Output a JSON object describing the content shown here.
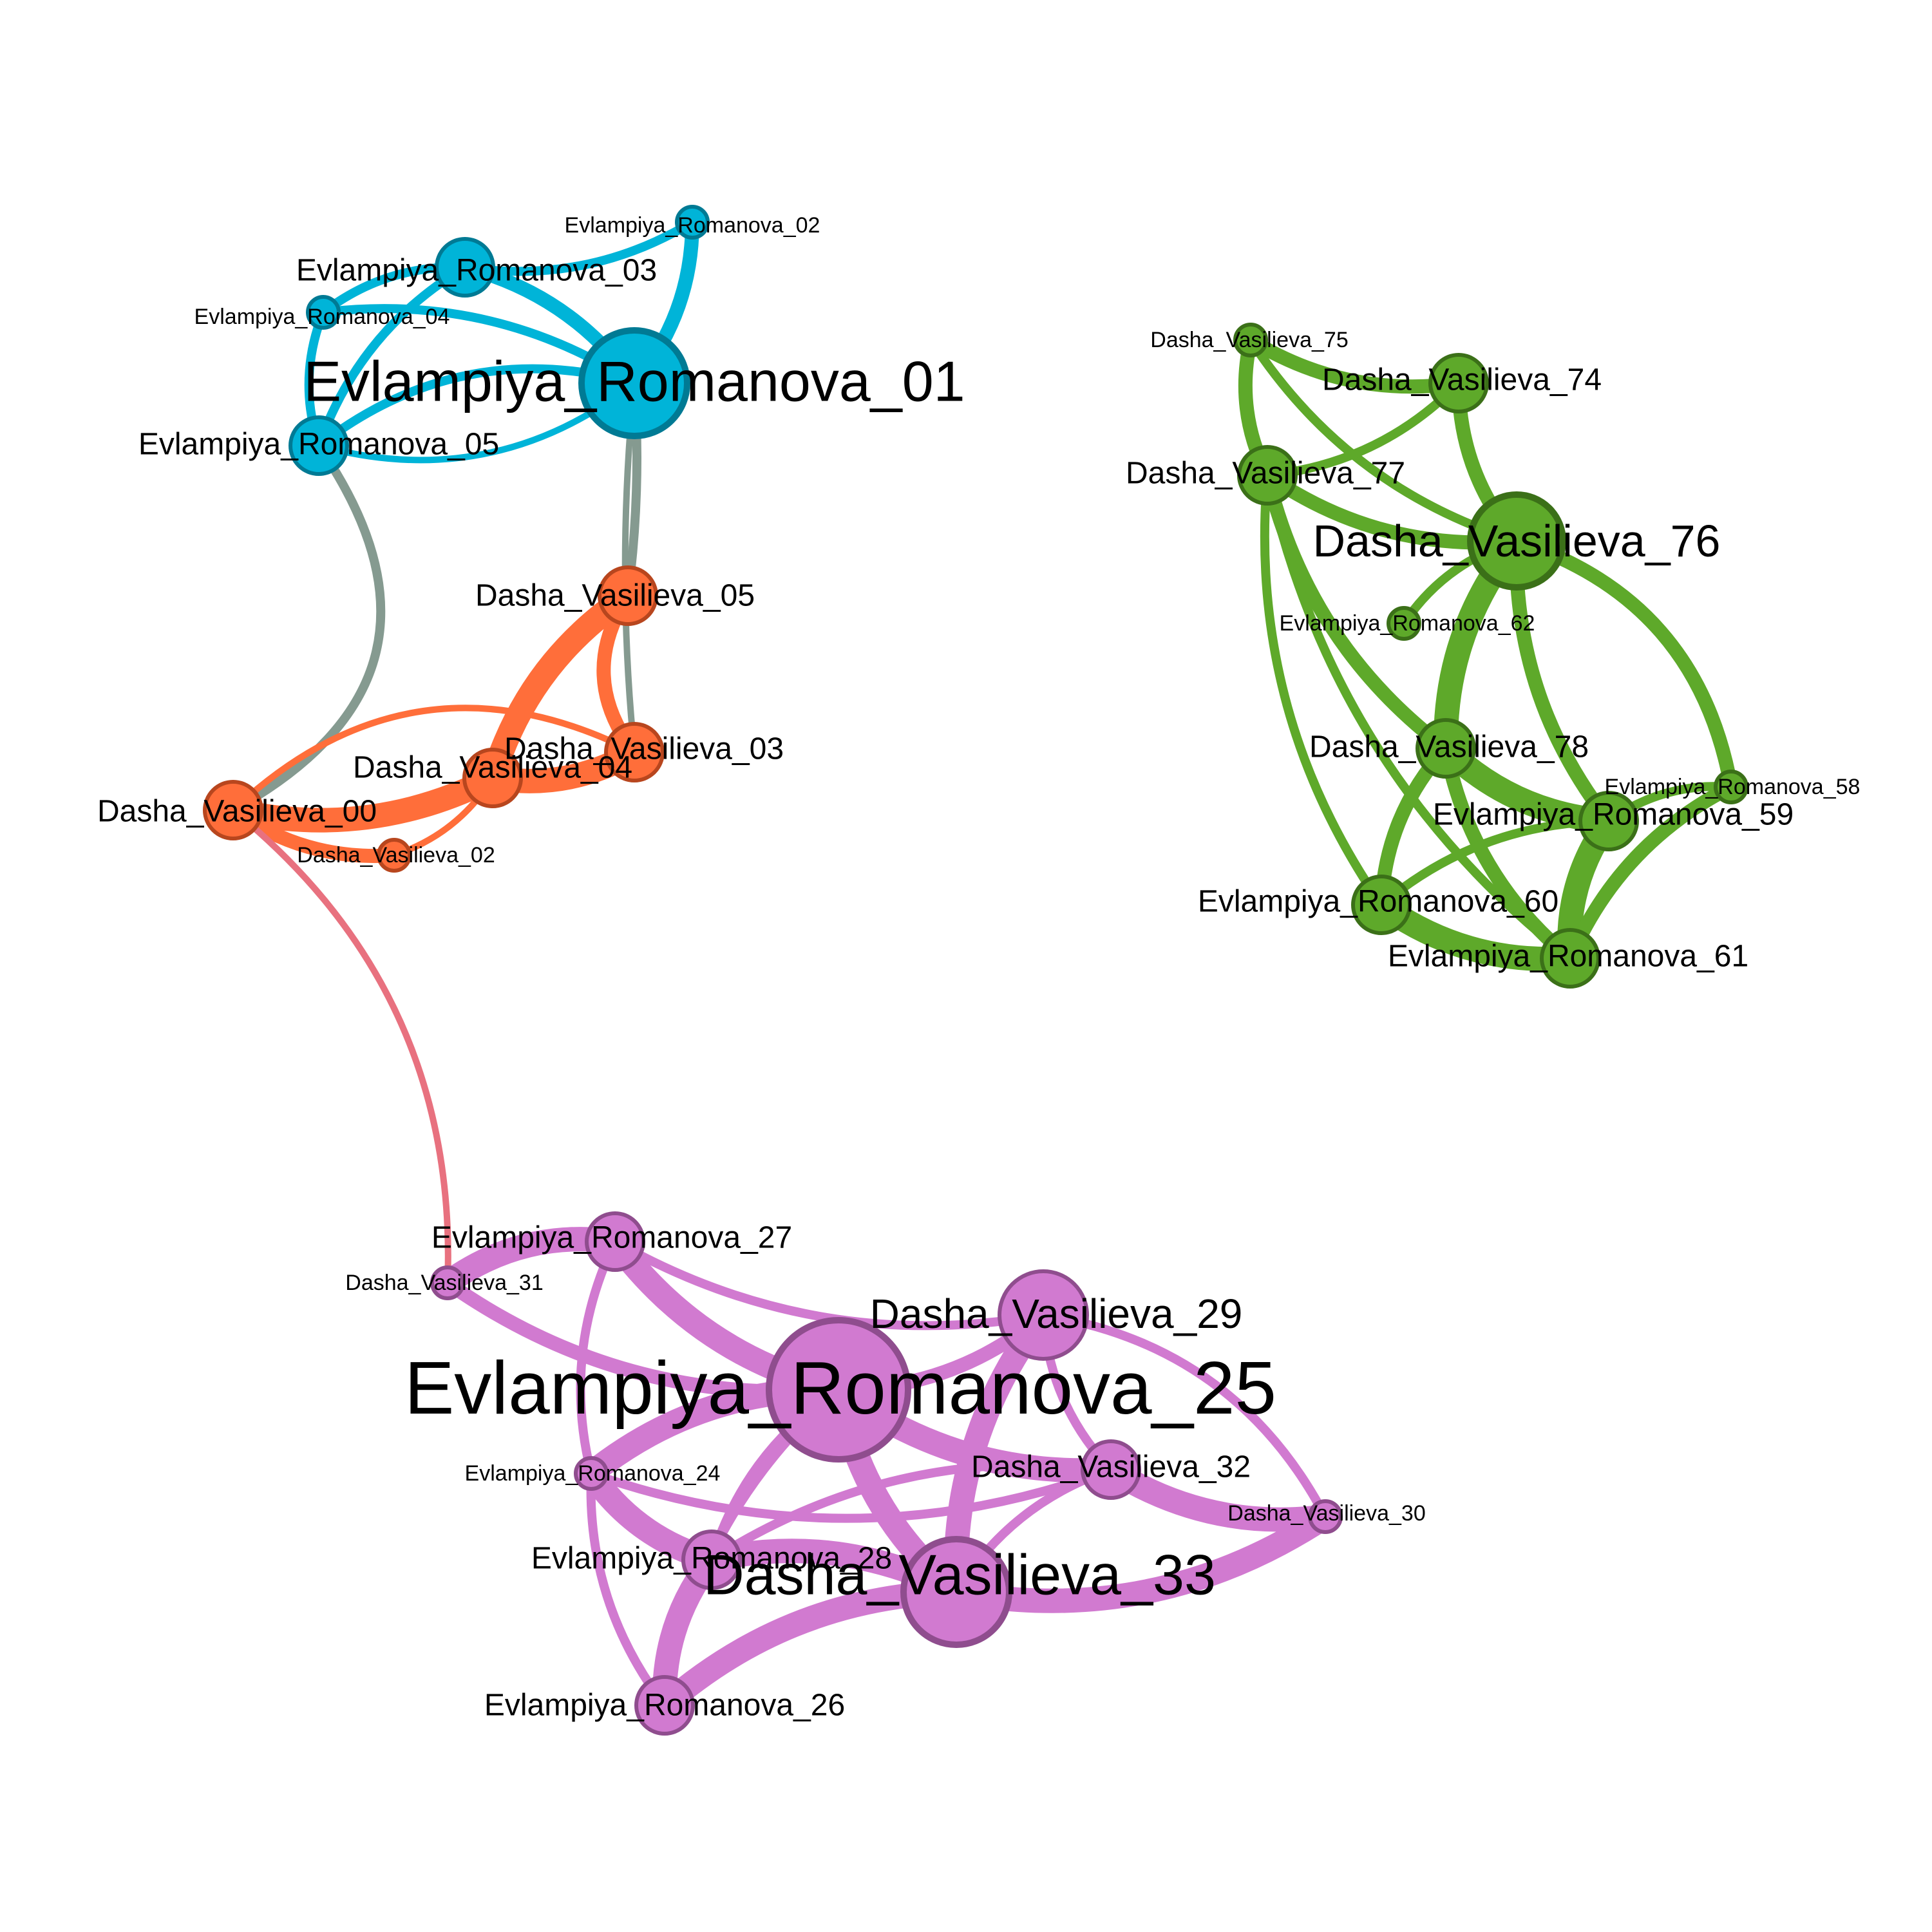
{
  "communities": {
    "blue": {
      "fill": "#00b4d8",
      "stroke": "#007a94"
    },
    "orange": {
      "fill": "#ff6e3a",
      "stroke": "#b8461e"
    },
    "green": {
      "fill": "#5ea92a",
      "stroke": "#3b7018"
    },
    "purple": {
      "fill": "#d17ad0",
      "stroke": "#8f4d8e"
    }
  },
  "nodes": [
    {
      "id": "er01",
      "label": "Evlampiya_Romanova_01",
      "community": "blue",
      "weight": 5
    },
    {
      "id": "er02",
      "label": "Evlampiya_Romanova_02",
      "community": "blue",
      "weight": 1
    },
    {
      "id": "er03",
      "label": "Evlampiya_Romanova_03",
      "community": "blue",
      "weight": 2
    },
    {
      "id": "er04",
      "label": "Evlampiya_Romanova_04",
      "community": "blue",
      "weight": 1
    },
    {
      "id": "er05",
      "label": "Evlampiya_Romanova_05",
      "community": "blue",
      "weight": 2
    },
    {
      "id": "dv00",
      "label": "Dasha_Vasilieva_00",
      "community": "orange",
      "weight": 2
    },
    {
      "id": "dv02",
      "label": "Dasha_Vasilieva_02",
      "community": "orange",
      "weight": 1
    },
    {
      "id": "dv03",
      "label": "Dasha_Vasilieva_03",
      "community": "orange",
      "weight": 2
    },
    {
      "id": "dv04",
      "label": "Dasha_Vasilieva_04",
      "community": "orange",
      "weight": 2
    },
    {
      "id": "dv05",
      "label": "Dasha_Vasilieva_05",
      "community": "orange",
      "weight": 2
    },
    {
      "id": "dv74",
      "label": "Dasha_Vasilieva_74",
      "community": "green",
      "weight": 2
    },
    {
      "id": "dv75",
      "label": "Dasha_Vasilieva_75",
      "community": "green",
      "weight": 1
    },
    {
      "id": "dv76",
      "label": "Dasha_Vasilieva_76",
      "community": "green",
      "weight": 4
    },
    {
      "id": "dv77",
      "label": "Dasha_Vasilieva_77",
      "community": "green",
      "weight": 2
    },
    {
      "id": "dv78",
      "label": "Dasha_Vasilieva_78",
      "community": "green",
      "weight": 2
    },
    {
      "id": "er58",
      "label": "Evlampiya_Romanova_58",
      "community": "green",
      "weight": 1
    },
    {
      "id": "er59",
      "label": "Evlampiya_Romanova_59",
      "community": "green",
      "weight": 2
    },
    {
      "id": "er60",
      "label": "Evlampiya_Romanova_60",
      "community": "green",
      "weight": 2
    },
    {
      "id": "er61",
      "label": "Evlampiya_Romanova_61",
      "community": "green",
      "weight": 2
    },
    {
      "id": "er62",
      "label": "Evlampiya_Romanova_62",
      "community": "green",
      "weight": 1
    },
    {
      "id": "er24",
      "label": "Evlampiya_Romanova_24",
      "community": "purple",
      "weight": 1
    },
    {
      "id": "er25",
      "label": "Evlampiya_Romanova_25",
      "community": "purple",
      "weight": 6
    },
    {
      "id": "er26",
      "label": "Evlampiya_Romanova_26",
      "community": "purple",
      "weight": 2
    },
    {
      "id": "er27",
      "label": "Evlampiya_Romanova_27",
      "community": "purple",
      "weight": 2
    },
    {
      "id": "er28",
      "label": "Evlampiya_Romanova_28",
      "community": "purple",
      "weight": 2
    },
    {
      "id": "dv29",
      "label": "Dasha_Vasilieva_29",
      "community": "purple",
      "weight": 3
    },
    {
      "id": "dv30",
      "label": "Dasha_Vasilieva_30",
      "community": "purple",
      "weight": 1
    },
    {
      "id": "dv31",
      "label": "Dasha_Vasilieva_31",
      "community": "purple",
      "weight": 1
    },
    {
      "id": "dv32",
      "label": "Dasha_Vasilieva_32",
      "community": "purple",
      "weight": 2
    },
    {
      "id": "dv33",
      "label": "Dasha_Vasilieva_33",
      "community": "purple",
      "weight": 5
    }
  ],
  "edges": [
    {
      "source": "er01",
      "target": "er02",
      "weight": 5,
      "color": "#00b4d8"
    },
    {
      "source": "er01",
      "target": "er03",
      "weight": 5,
      "color": "#00b4d8"
    },
    {
      "source": "er01",
      "target": "er04",
      "weight": 3,
      "color": "#00b4d8"
    },
    {
      "source": "er01",
      "target": "er05",
      "weight": 3,
      "color": "#00b4d8"
    },
    {
      "source": "er03",
      "target": "er02",
      "weight": 3,
      "color": "#00b4d8"
    },
    {
      "source": "er03",
      "target": "er04",
      "weight": 3,
      "color": "#00b4d8"
    },
    {
      "source": "er03",
      "target": "er05",
      "weight": 3,
      "color": "#00b4d8"
    },
    {
      "source": "er04",
      "target": "er05",
      "weight": 3,
      "color": "#00b4d8"
    },
    {
      "source": "er05",
      "target": "er01",
      "weight": 2,
      "color": "#00b4d8"
    },
    {
      "source": "er05",
      "target": "dv00",
      "weight": 3,
      "color": "#859a90"
    },
    {
      "source": "er01",
      "target": "dv05",
      "weight": 3,
      "color": "#859a90"
    },
    {
      "source": "er01",
      "target": "dv03",
      "weight": 2,
      "color": "#859a90"
    },
    {
      "source": "dv05",
      "target": "dv04",
      "weight": 6,
      "color": "#ff6e3a"
    },
    {
      "source": "dv05",
      "target": "dv03",
      "weight": 5,
      "color": "#ff6e3a"
    },
    {
      "source": "dv04",
      "target": "dv03",
      "weight": 6,
      "color": "#ff6e3a"
    },
    {
      "source": "dv00",
      "target": "dv04",
      "weight": 6,
      "color": "#ff6e3a"
    },
    {
      "source": "dv00",
      "target": "dv02",
      "weight": 5,
      "color": "#ff6e3a"
    },
    {
      "source": "dv00",
      "target": "dv03",
      "weight": 2,
      "color": "#ff6e3a"
    },
    {
      "source": "dv02",
      "target": "dv04",
      "weight": 2,
      "color": "#ff6e3a"
    },
    {
      "source": "dv00",
      "target": "dv31",
      "weight": 2,
      "color": "#e8717f"
    },
    {
      "source": "dv75",
      "target": "dv74",
      "weight": 5,
      "color": "#5ea92a"
    },
    {
      "source": "dv75",
      "target": "dv77",
      "weight": 5,
      "color": "#5ea92a"
    },
    {
      "source": "dv75",
      "target": "dv76",
      "weight": 3,
      "color": "#5ea92a"
    },
    {
      "source": "dv74",
      "target": "dv76",
      "weight": 5,
      "color": "#5ea92a"
    },
    {
      "source": "dv77",
      "target": "dv74",
      "weight": 3,
      "color": "#5ea92a"
    },
    {
      "source": "dv77",
      "target": "dv76",
      "weight": 5,
      "color": "#5ea92a"
    },
    {
      "source": "dv77",
      "target": "dv78",
      "weight": 5,
      "color": "#5ea92a"
    },
    {
      "source": "dv77",
      "target": "er60",
      "weight": 3,
      "color": "#5ea92a"
    },
    {
      "source": "dv77",
      "target": "er61",
      "weight": 3,
      "color": "#5ea92a"
    },
    {
      "source": "dv76",
      "target": "dv78",
      "weight": 6,
      "color": "#5ea92a"
    },
    {
      "source": "dv76",
      "target": "er62",
      "weight": 3,
      "color": "#5ea92a"
    },
    {
      "source": "dv76",
      "target": "er58",
      "weight": 5,
      "color": "#5ea92a"
    },
    {
      "source": "dv76",
      "target": "er59",
      "weight": 5,
      "color": "#5ea92a"
    },
    {
      "source": "dv78",
      "target": "er59",
      "weight": 6,
      "color": "#5ea92a"
    },
    {
      "source": "dv78",
      "target": "er60",
      "weight": 5,
      "color": "#5ea92a"
    },
    {
      "source": "dv78",
      "target": "er61",
      "weight": 5,
      "color": "#5ea92a"
    },
    {
      "source": "er59",
      "target": "er60",
      "weight": 3,
      "color": "#5ea92a"
    },
    {
      "source": "er59",
      "target": "er61",
      "weight": 6,
      "color": "#5ea92a"
    },
    {
      "source": "er58",
      "target": "er61",
      "weight": 5,
      "color": "#5ea92a"
    },
    {
      "source": "er58",
      "target": "er59",
      "weight": 3,
      "color": "#5ea92a"
    },
    {
      "source": "er60",
      "target": "er61",
      "weight": 6,
      "color": "#5ea92a"
    },
    {
      "source": "dv31",
      "target": "er27",
      "weight": 6,
      "color": "#d17ad0"
    },
    {
      "source": "dv31",
      "target": "er25",
      "weight": 5,
      "color": "#d17ad0"
    },
    {
      "source": "er27",
      "target": "er25",
      "weight": 6,
      "color": "#d17ad0"
    },
    {
      "source": "er27",
      "target": "dv29",
      "weight": 3,
      "color": "#d17ad0"
    },
    {
      "source": "er27",
      "target": "er24",
      "weight": 3,
      "color": "#d17ad0"
    },
    {
      "source": "er25",
      "target": "dv29",
      "weight": 5,
      "color": "#d17ad0"
    },
    {
      "source": "er25",
      "target": "dv32",
      "weight": 6,
      "color": "#d17ad0"
    },
    {
      "source": "er25",
      "target": "dv33",
      "weight": 6,
      "color": "#d17ad0"
    },
    {
      "source": "er25",
      "target": "er24",
      "weight": 6,
      "color": "#d17ad0"
    },
    {
      "source": "er25",
      "target": "er28",
      "weight": 3,
      "color": "#d17ad0"
    },
    {
      "source": "er25",
      "target": "er26",
      "weight": 3,
      "color": "#d17ad0"
    },
    {
      "source": "er24",
      "target": "er28",
      "weight": 6,
      "color": "#d17ad0"
    },
    {
      "source": "er24",
      "target": "dv32",
      "weight": 3,
      "color": "#d17ad0"
    },
    {
      "source": "dv29",
      "target": "dv33",
      "weight": 6,
      "color": "#d17ad0"
    },
    {
      "source": "dv29",
      "target": "dv30",
      "weight": 3,
      "color": "#d17ad0"
    },
    {
      "source": "dv29",
      "target": "dv32",
      "weight": 3,
      "color": "#d17ad0"
    },
    {
      "source": "dv32",
      "target": "dv30",
      "weight": 6,
      "color": "#d17ad0"
    },
    {
      "source": "dv32",
      "target": "dv33",
      "weight": 3,
      "color": "#d17ad0"
    },
    {
      "source": "dv32",
      "target": "er28",
      "weight": 3,
      "color": "#d17ad0"
    },
    {
      "source": "dv33",
      "target": "dv30",
      "weight": 6,
      "color": "#d17ad0"
    },
    {
      "source": "dv33",
      "target": "er28",
      "weight": 6,
      "color": "#d17ad0"
    },
    {
      "source": "dv33",
      "target": "er26",
      "weight": 6,
      "color": "#d17ad0"
    },
    {
      "source": "er28",
      "target": "er26",
      "weight": 6,
      "color": "#d17ad0"
    },
    {
      "source": "er24",
      "target": "er26",
      "weight": 3,
      "color": "#d17ad0"
    }
  ]
}
